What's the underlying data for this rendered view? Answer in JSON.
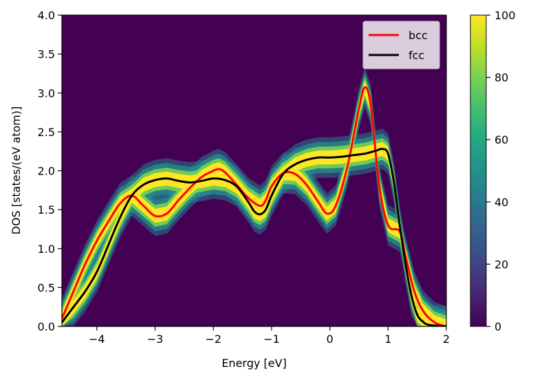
{
  "chart_data": {
    "type": "heatmap",
    "title": "",
    "xlabel": "Energy [eV]",
    "ylabel": "DOS [states/(eV atom)]",
    "xlim": [
      -4.6,
      2.0
    ],
    "ylim": [
      0.0,
      4.0
    ],
    "x_ticks": [
      -4,
      -3,
      -2,
      -1,
      0,
      1,
      2
    ],
    "x_tick_labels": [
      "−4",
      "−3",
      "−2",
      "−1",
      "0",
      "1",
      "2"
    ],
    "y_ticks": [
      0.0,
      0.5,
      1.0,
      1.5,
      2.0,
      2.5,
      3.0,
      3.5,
      4.0
    ],
    "y_tick_labels": [
      "0.0",
      "0.5",
      "1.0",
      "1.5",
      "2.0",
      "2.5",
      "3.0",
      "3.5",
      "4.0"
    ],
    "colormap": "viridis",
    "colorbar": {
      "range": [
        0,
        100
      ],
      "ticks": [
        0,
        20,
        40,
        60,
        80,
        100
      ],
      "tick_labels": [
        "0",
        "20",
        "40",
        "60",
        "80",
        "100"
      ]
    },
    "legend_position": "top-right",
    "grid": false,
    "series": [
      {
        "name": "bcc",
        "color": "#ff0000",
        "x": [
          -4.6,
          -4.4,
          -4.2,
          -4.0,
          -3.8,
          -3.6,
          -3.4,
          -3.2,
          -3.0,
          -2.8,
          -2.6,
          -2.4,
          -2.2,
          -2.0,
          -1.9,
          -1.8,
          -1.6,
          -1.4,
          -1.2,
          -1.1,
          -1.0,
          -0.8,
          -0.6,
          -0.4,
          -0.2,
          -0.05,
          0.1,
          0.3,
          0.5,
          0.6,
          0.7,
          0.85,
          1.0,
          1.2,
          1.3,
          1.45,
          1.6,
          1.8,
          2.0
        ],
        "y": [
          0.1,
          0.45,
          0.8,
          1.1,
          1.35,
          1.58,
          1.68,
          1.55,
          1.42,
          1.45,
          1.62,
          1.78,
          1.92,
          2.0,
          2.02,
          1.98,
          1.82,
          1.65,
          1.55,
          1.62,
          1.8,
          1.97,
          1.96,
          1.82,
          1.6,
          1.45,
          1.55,
          2.05,
          2.8,
          3.07,
          2.85,
          1.8,
          1.3,
          1.22,
          0.9,
          0.45,
          0.2,
          0.05,
          0.0
        ]
      },
      {
        "name": "fcc",
        "color": "#000000",
        "x": [
          -4.6,
          -4.4,
          -4.2,
          -4.0,
          -3.8,
          -3.6,
          -3.4,
          -3.2,
          -3.0,
          -2.8,
          -2.6,
          -2.4,
          -2.2,
          -2.0,
          -1.8,
          -1.6,
          -1.4,
          -1.3,
          -1.2,
          -1.1,
          -1.0,
          -0.8,
          -0.6,
          -0.4,
          -0.2,
          0.0,
          0.2,
          0.4,
          0.6,
          0.8,
          0.9,
          1.0,
          1.1,
          1.2,
          1.3,
          1.4,
          1.5,
          1.6,
          1.7,
          2.0
        ],
        "y": [
          0.05,
          0.25,
          0.45,
          0.7,
          1.05,
          1.4,
          1.68,
          1.82,
          1.88,
          1.9,
          1.87,
          1.85,
          1.87,
          1.9,
          1.88,
          1.8,
          1.6,
          1.48,
          1.44,
          1.5,
          1.68,
          1.96,
          2.08,
          2.14,
          2.17,
          2.17,
          2.18,
          2.2,
          2.22,
          2.26,
          2.28,
          2.22,
          1.85,
          1.3,
          0.8,
          0.4,
          0.15,
          0.06,
          0.02,
          0.0
        ]
      }
    ]
  }
}
